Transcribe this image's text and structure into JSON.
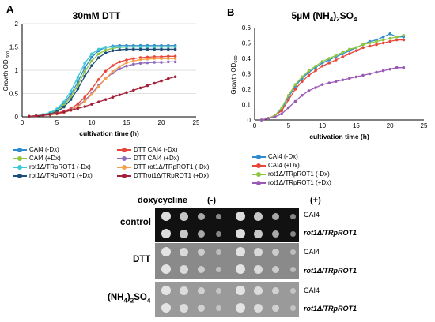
{
  "panel_a": {
    "letter": "A",
    "title": "30mM DTT",
    "chart_data": {
      "type": "line",
      "title": "30mM DTT",
      "xlabel": "cultivation time (h)",
      "ylabel": "Growth OD 600",
      "xlim": [
        0,
        25
      ],
      "ylim": [
        0,
        2
      ],
      "xticks": [
        0,
        5,
        10,
        15,
        20,
        25
      ],
      "yticks": [
        0,
        0.5,
        1,
        1.5,
        2
      ],
      "grid": "horizontal",
      "x": [
        1,
        2,
        3,
        4,
        5,
        6,
        7,
        8,
        9,
        10,
        11,
        12,
        13,
        14,
        15,
        16,
        17,
        18,
        19,
        20,
        21,
        22
      ],
      "series": [
        {
          "name": "CAI4 (-Dx)",
          "color": "#2e8bcc",
          "values": [
            0.01,
            0.02,
            0.04,
            0.08,
            0.15,
            0.28,
            0.48,
            0.75,
            1.05,
            1.28,
            1.42,
            1.49,
            1.52,
            1.53,
            1.53,
            1.53,
            1.53,
            1.53,
            1.53,
            1.53,
            1.53,
            1.53
          ]
        },
        {
          "name": "CAI4 (+Dx)",
          "color": "#8dc63f",
          "values": [
            0.01,
            0.02,
            0.04,
            0.07,
            0.13,
            0.25,
            0.43,
            0.68,
            0.97,
            1.2,
            1.35,
            1.43,
            1.47,
            1.49,
            1.5,
            1.5,
            1.5,
            1.5,
            1.5,
            1.5,
            1.5,
            1.5
          ]
        },
        {
          "name": "rot1Δ/TRpROT1 (-Dx)",
          "color": "#3cc8d6",
          "values": [
            0.01,
            0.02,
            0.05,
            0.09,
            0.17,
            0.32,
            0.55,
            0.85,
            1.15,
            1.35,
            1.45,
            1.49,
            1.5,
            1.5,
            1.5,
            1.5,
            1.5,
            1.5,
            1.5,
            1.5,
            1.5,
            1.5
          ]
        },
        {
          "name": "rot1Δ/TRpROT1 (+Dx)",
          "color": "#1f4e79",
          "values": [
            0.01,
            0.02,
            0.03,
            0.06,
            0.11,
            0.21,
            0.37,
            0.6,
            0.87,
            1.1,
            1.27,
            1.37,
            1.42,
            1.44,
            1.45,
            1.45,
            1.45,
            1.45,
            1.45,
            1.45,
            1.45,
            1.45
          ]
        },
        {
          "name": "DTT CAI4 (-Dx)",
          "color": "#e8483b",
          "values": [
            0.01,
            0.02,
            0.03,
            0.05,
            0.08,
            0.12,
            0.18,
            0.28,
            0.42,
            0.6,
            0.8,
            0.98,
            1.1,
            1.18,
            1.22,
            1.25,
            1.27,
            1.28,
            1.29,
            1.29,
            1.3,
            1.3
          ]
        },
        {
          "name": "DTT CAI4 (+Dx)",
          "color": "#8e6bbf",
          "values": [
            0.01,
            0.02,
            0.03,
            0.05,
            0.07,
            0.1,
            0.15,
            0.23,
            0.35,
            0.5,
            0.67,
            0.82,
            0.94,
            1.03,
            1.09,
            1.13,
            1.15,
            1.16,
            1.17,
            1.17,
            1.18,
            1.18
          ]
        },
        {
          "name": "DTT rot1Δ/TRpROT1 (-Dx)",
          "color": "#f5a04a",
          "values": [
            0.01,
            0.02,
            0.03,
            0.04,
            0.06,
            0.09,
            0.14,
            0.22,
            0.33,
            0.48,
            0.65,
            0.82,
            0.97,
            1.08,
            1.16,
            1.2,
            1.23,
            1.24,
            1.25,
            1.25,
            1.25,
            1.25
          ]
        },
        {
          "name": "DTTrot1Δ/TRpROT1 (+Dx)",
          "color": "#a3213a",
          "values": [
            0.01,
            0.02,
            0.03,
            0.05,
            0.07,
            0.1,
            0.14,
            0.18,
            0.22,
            0.27,
            0.32,
            0.37,
            0.42,
            0.47,
            0.52,
            0.57,
            0.62,
            0.67,
            0.72,
            0.77,
            0.82,
            0.86
          ]
        }
      ]
    }
  },
  "panel_b": {
    "letter": "B",
    "title_main": "5µM (NH",
    "title_sub1": "4",
    "title_mid": ")",
    "title_sub2": "2",
    "title_end": "SO",
    "title_sub3": "4",
    "chart_data": {
      "type": "line",
      "title": "5µM (NH4)2SO4",
      "xlabel": "cultivation time (h)",
      "ylabel": "Growth OD600",
      "xlim": [
        0,
        25
      ],
      "ylim": [
        0,
        0.6
      ],
      "xticks": [
        0,
        5,
        10,
        15,
        20,
        25
      ],
      "yticks": [
        0,
        0.1,
        0.2,
        0.3,
        0.4,
        0.5,
        0.6
      ],
      "grid": "none",
      "x": [
        1,
        2,
        3,
        4,
        5,
        6,
        7,
        8,
        9,
        10,
        11,
        12,
        13,
        14,
        15,
        16,
        17,
        18,
        19,
        20,
        21,
        22
      ],
      "series": [
        {
          "name": "CAI4 (-Dx)",
          "color": "#2e8bcc",
          "values": [
            0.0,
            0.01,
            0.03,
            0.07,
            0.15,
            0.22,
            0.27,
            0.31,
            0.34,
            0.37,
            0.39,
            0.41,
            0.43,
            0.45,
            0.47,
            0.49,
            0.51,
            0.52,
            0.54,
            0.56,
            0.54,
            0.54
          ]
        },
        {
          "name": "CAI4 (+Dx)",
          "color": "#e8483b",
          "values": [
            0.0,
            0.01,
            0.03,
            0.06,
            0.13,
            0.2,
            0.25,
            0.29,
            0.32,
            0.35,
            0.37,
            0.39,
            0.41,
            0.43,
            0.45,
            0.47,
            0.48,
            0.49,
            0.5,
            0.51,
            0.52,
            0.52
          ]
        },
        {
          "name": "rot1Δ/TRpROT1 (-Dx)",
          "color": "#8dc63f",
          "values": [
            0.0,
            0.01,
            0.03,
            0.08,
            0.16,
            0.23,
            0.28,
            0.32,
            0.35,
            0.38,
            0.4,
            0.42,
            0.44,
            0.46,
            0.47,
            0.49,
            0.5,
            0.51,
            0.52,
            0.53,
            0.54,
            0.55
          ]
        },
        {
          "name": "rot1Δ/TRpROT1 (+Dx)",
          "color": "#9b59b6",
          "values": [
            0.0,
            0.01,
            0.02,
            0.04,
            0.08,
            0.12,
            0.16,
            0.19,
            0.21,
            0.23,
            0.24,
            0.25,
            0.26,
            0.27,
            0.28,
            0.29,
            0.3,
            0.31,
            0.32,
            0.33,
            0.34,
            0.34
          ]
        }
      ]
    }
  },
  "legend_a_left": [
    "CAI4 (-Dx)",
    "CAI4 (+Dx)",
    "rot1Δ/TRpROT1 (-Dx)",
    "rot1Δ/TRpROT1 (+Dx)"
  ],
  "legend_a_right": [
    "DTT CAI4 (-Dx)",
    "DTT CAI4 (+Dx)",
    "DTT rot1Δ/TRpROT1 (-Dx)",
    "DTTrot1Δ/TRpROT1 (+Dx)"
  ],
  "spot_assay": {
    "doxycycline_label": "doxycycline",
    "minus_label": "(-)",
    "plus_label": "(+)",
    "row_control": "control",
    "row_dtt": "DTT",
    "row_nh4_a": "(NH",
    "row_nh4_sub1": "4",
    "row_nh4_b": ")",
    "row_nh4_sub2": "2",
    "row_nh4_c": "SO",
    "row_nh4_sub3": "4",
    "strain_cai4": "CAI4",
    "strain_rot1": "rot1Δ/TRpROT1",
    "colors": {
      "control_plate": "#111111",
      "dtt_plate": "#8a8a8a",
      "nh4_plate": "#9a9a9a",
      "spot": "#e8e8e8"
    }
  }
}
